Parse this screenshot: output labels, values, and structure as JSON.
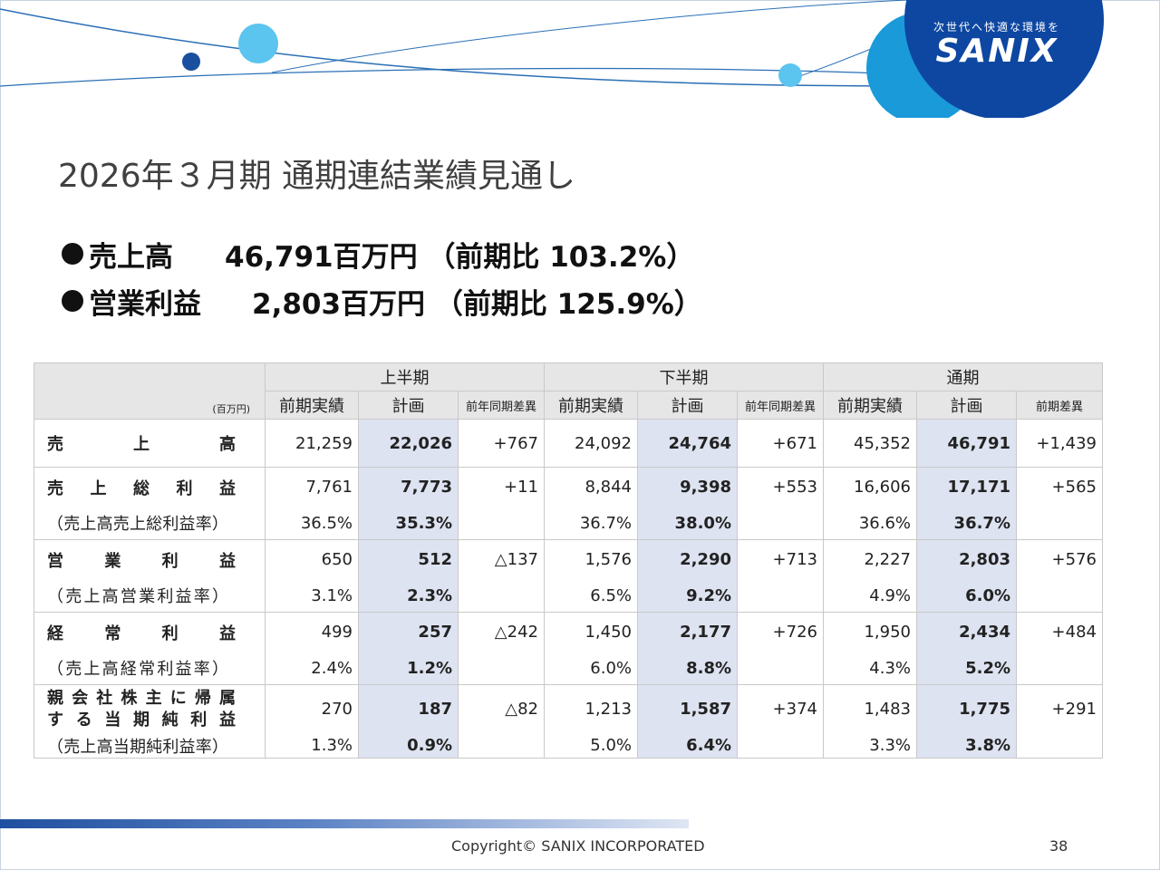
{
  "brand": {
    "tagline": "次世代へ快適な環境を",
    "name": "SANIX"
  },
  "title": "2026年３月期 通期連結業績見通し",
  "highlights": [
    {
      "label": "売上高",
      "value": "46,791百万円 （前期比 103.2%）"
    },
    {
      "label": "営業利益",
      "value": "2,803百万円 （前期比 125.9%）"
    }
  ],
  "table": {
    "unit": "(百万円)",
    "periods": [
      "上半期",
      "下半期",
      "通期"
    ],
    "subheaders": [
      "前期実績",
      "計画",
      "前年同期差異",
      "前期実績",
      "計画",
      "前年同期差異",
      "前期実績",
      "計画",
      "前期差異"
    ],
    "rows": [
      {
        "label": "売上高",
        "values": [
          "21,259",
          "22,026",
          "+767",
          "24,092",
          "24,764",
          "+671",
          "45,352",
          "46,791",
          "+1,439"
        ]
      },
      {
        "label": "売上総利益",
        "values": [
          "7,761",
          "7,773",
          "+11",
          "8,844",
          "9,398",
          "+553",
          "16,606",
          "17,171",
          "+565"
        ],
        "sub_label": "（売上高売上総利益率）",
        "sub_values": [
          "36.5%",
          "35.3%",
          "",
          "36.7%",
          "38.0%",
          "",
          "36.6%",
          "36.7%",
          ""
        ]
      },
      {
        "label": "営業利益",
        "values": [
          "650",
          "512",
          "△137",
          "1,576",
          "2,290",
          "+713",
          "2,227",
          "2,803",
          "+576"
        ],
        "sub_label": "（売上高営業利益率）",
        "sub_values": [
          "3.1%",
          "2.3%",
          "",
          "6.5%",
          "9.2%",
          "",
          "4.9%",
          "6.0%",
          ""
        ]
      },
      {
        "label": "経常利益",
        "values": [
          "499",
          "257",
          "△242",
          "1,450",
          "2,177",
          "+726",
          "1,950",
          "2,434",
          "+484"
        ],
        "sub_label": "（売上高経常利益率）",
        "sub_values": [
          "2.4%",
          "1.2%",
          "",
          "6.0%",
          "8.8%",
          "",
          "4.3%",
          "5.2%",
          ""
        ]
      },
      {
        "label_line1": "親会社株主に帰属",
        "label_line2": "する当期純利益",
        "values": [
          "270",
          "187",
          "△82",
          "1,213",
          "1,587",
          "+374",
          "1,483",
          "1,775",
          "+291"
        ],
        "sub_label": "（売上高当期純利益率）",
        "sub_values": [
          "1.3%",
          "0.9%",
          "",
          "5.0%",
          "6.4%",
          "",
          "3.3%",
          "3.8%",
          ""
        ]
      }
    ]
  },
  "footer": {
    "copyright": "Copyright©  SANIX INCORPORATED",
    "page": "38"
  },
  "colors": {
    "accent": "#1f4fa0",
    "light_blue": "#5bc4ef",
    "highlight_col": "#dde3f1",
    "header_bg": "#e6e6e6"
  }
}
